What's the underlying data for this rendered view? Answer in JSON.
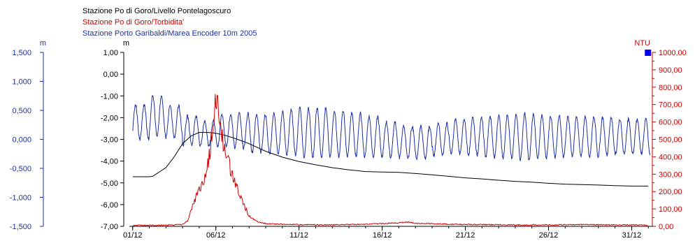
{
  "legend": {
    "black": "Stazione Po di Goro/Livello Pontelagoscuro",
    "red": "Stazione Po di Goro/Torbidita'",
    "blue": "Stazione Porto Garibaldi/Marea Encoder 10m 2005"
  },
  "colors": {
    "black": "#000000",
    "red": "#cc0000",
    "blue": "#1f2fa6",
    "marker": "#0000ff"
  },
  "chart_data": {
    "type": "line",
    "x_tick_labels": [
      "01/12",
      "06/12",
      "11/12",
      "16/12",
      "21/12",
      "26/12",
      "31/12"
    ],
    "x_tick_days": [
      1,
      6,
      11,
      16,
      21,
      26,
      31
    ],
    "x_range_days": [
      0.8,
      32.2
    ],
    "grid": false,
    "axes": {
      "left_blue": {
        "unit": "m",
        "ticks": [
          "1,500",
          "1,000",
          "0,500",
          "0,000",
          "-0,500",
          "-1,000",
          "-1,500"
        ],
        "tick_values": [
          1.5,
          1.0,
          0.5,
          0.0,
          -0.5,
          -1.0,
          -1.5
        ],
        "range": [
          -1.5,
          1.5
        ]
      },
      "left_black": {
        "unit": "m",
        "ticks": [
          "1,00",
          "0,00",
          "-1,00",
          "-2,00",
          "-3,00",
          "-4,00",
          "-5,00",
          "-6,00",
          "-7,00"
        ],
        "tick_values": [
          1,
          0,
          -1,
          -2,
          -3,
          -4,
          -5,
          -6,
          -7
        ],
        "range": [
          -7,
          1
        ]
      },
      "right_red": {
        "unit": "NTU",
        "ticks": [
          "1000,00",
          "900,00",
          "800,00",
          "700,00",
          "600,00",
          "500,00",
          "400,00",
          "300,00",
          "200,00",
          "100,00",
          "0,00"
        ],
        "tick_values": [
          1000,
          900,
          800,
          700,
          600,
          500,
          400,
          300,
          200,
          100,
          0
        ],
        "range": [
          0,
          1000
        ]
      }
    },
    "series": [
      {
        "name": "Stazione Po di Goro/Livello Pontelagoscuro",
        "axis": "left_black",
        "color": "black",
        "points": [
          [
            1,
            -4.72
          ],
          [
            2,
            -4.72
          ],
          [
            2.2,
            -4.7
          ],
          [
            3,
            -4.3
          ],
          [
            3.5,
            -3.8
          ],
          [
            4,
            -3.2
          ],
          [
            4.5,
            -2.85
          ],
          [
            5,
            -2.68
          ],
          [
            5.5,
            -2.68
          ],
          [
            6,
            -2.72
          ],
          [
            6.5,
            -2.8
          ],
          [
            7,
            -2.92
          ],
          [
            7.5,
            -3.05
          ],
          [
            8,
            -3.2
          ],
          [
            9,
            -3.55
          ],
          [
            10,
            -3.82
          ],
          [
            11,
            -4.02
          ],
          [
            12,
            -4.17
          ],
          [
            13,
            -4.3
          ],
          [
            14,
            -4.4
          ],
          [
            15,
            -4.48
          ],
          [
            16,
            -4.5
          ],
          [
            17,
            -4.52
          ],
          [
            18,
            -4.57
          ],
          [
            19,
            -4.63
          ],
          [
            20,
            -4.7
          ],
          [
            21,
            -4.77
          ],
          [
            22,
            -4.82
          ],
          [
            23,
            -4.88
          ],
          [
            24,
            -4.93
          ],
          [
            25,
            -4.97
          ],
          [
            26,
            -5.02
          ],
          [
            27,
            -5.06
          ],
          [
            28,
            -5.08
          ],
          [
            29,
            -5.1
          ],
          [
            30,
            -5.13
          ],
          [
            31,
            -5.15
          ],
          [
            32,
            -5.15
          ]
        ]
      },
      {
        "name": "Stazione Po di Goro/Torbidita'",
        "axis": "right_red",
        "color": "red",
        "points": [
          [
            1,
            5
          ],
          [
            3,
            7
          ],
          [
            4,
            10
          ],
          [
            4.3,
            30
          ],
          [
            4.6,
            120
          ],
          [
            5,
            210
          ],
          [
            5.3,
            250
          ],
          [
            5.6,
            400
          ],
          [
            5.8,
            560
          ],
          [
            6,
            720
          ],
          [
            6.2,
            640
          ],
          [
            6.4,
            500
          ],
          [
            6.7,
            380
          ],
          [
            7,
            300
          ],
          [
            7.3,
            220
          ],
          [
            7.6,
            140
          ],
          [
            8,
            60
          ],
          [
            8.4,
            30
          ],
          [
            9,
            15
          ],
          [
            10,
            12
          ],
          [
            11,
            10
          ],
          [
            13,
            8
          ],
          [
            15,
            12
          ],
          [
            17,
            20
          ],
          [
            17.5,
            25
          ],
          [
            18,
            18
          ],
          [
            19,
            15
          ],
          [
            20,
            12
          ],
          [
            22,
            10
          ],
          [
            24,
            8
          ],
          [
            26,
            8
          ],
          [
            28,
            10
          ],
          [
            30,
            8
          ],
          [
            32,
            8
          ]
        ]
      },
      {
        "name": "Stazione Porto Garibaldi/Marea Encoder 10m 2005",
        "axis": "left_blue",
        "color": "blue",
        "amplitudes": [
          0.6,
          0.7,
          0.55,
          0.5,
          0.45,
          0.55,
          0.6,
          0.65,
          0.7,
          0.8,
          0.85,
          0.85,
          0.8,
          0.75,
          0.7,
          0.6,
          0.55,
          0.55,
          0.55,
          0.6,
          0.65,
          0.7,
          0.75,
          0.8,
          0.75,
          0.7,
          0.7,
          0.7,
          0.65,
          0.6,
          0.6,
          0.65
        ],
        "means": [
          0.3,
          0.4,
          0.3,
          0.15,
          0.1,
          0.15,
          0.15,
          0.1,
          0.1,
          0.12,
          0.12,
          0.12,
          0.1,
          0.08,
          0.05,
          0.0,
          -0.05,
          -0.05,
          0.0,
          0.05,
          0.05,
          0.05,
          0.05,
          0.05,
          0.05,
          0.05,
          0.05,
          0.05,
          0.05,
          0.05,
          0.05,
          0.05
        ],
        "period_days": 0.52
      }
    ],
    "end_marker": {
      "axis": "right_red",
      "day": 32.0,
      "value": 1000
    }
  }
}
